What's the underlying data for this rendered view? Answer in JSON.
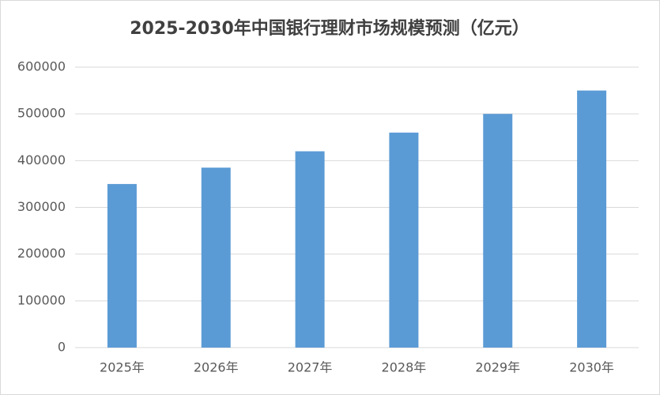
{
  "chart_data": {
    "type": "bar",
    "title": "2025-2030年中国银行理财市场规模预测（亿元）",
    "categories": [
      "2025年",
      "2026年",
      "2027年",
      "2028年",
      "2029年",
      "2030年"
    ],
    "values": [
      350000,
      385000,
      420000,
      460000,
      500000,
      550000
    ],
    "color": "#5b9bd5",
    "ylim": [
      0,
      600000
    ],
    "yticks": [
      0,
      100000,
      200000,
      300000,
      400000,
      500000,
      600000
    ],
    "grid": true
  }
}
